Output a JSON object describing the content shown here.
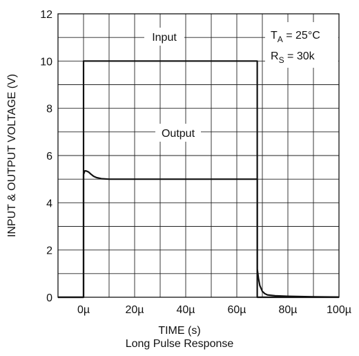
{
  "chart_data": {
    "type": "line",
    "caption": "Long Pulse Response",
    "xlabel": "TIME (s)",
    "ylabel": "INPUT & OUTPUT VOLTAGE (V)",
    "xlim": [
      -10,
      100
    ],
    "ylim": [
      0,
      12
    ],
    "x_ticks": [
      0,
      20,
      40,
      60,
      80,
      100
    ],
    "x_tick_labels": [
      "0µ",
      "20µ",
      "40µ",
      "60µ",
      "80µ",
      "100µ"
    ],
    "y_ticks": [
      0,
      2,
      4,
      6,
      8,
      10,
      12
    ],
    "y_tick_labels": [
      "0",
      "2",
      "4",
      "6",
      "8",
      "10",
      "12"
    ],
    "grid": true,
    "conditions": {
      "ta_label": "T",
      "ta_sub": "A",
      "ta_value": " = 25°C",
      "rs_label": "R",
      "rs_sub": "S",
      "rs_value": " = 30k"
    },
    "series": [
      {
        "name": "Input",
        "x": [
          -10,
          0,
          0,
          68,
          68,
          100
        ],
        "y": [
          0,
          0,
          10,
          10,
          0,
          0
        ]
      },
      {
        "name": "Output",
        "x": [
          -10,
          0,
          0,
          0.5,
          1,
          2,
          3,
          4,
          5,
          7,
          10,
          20,
          30,
          40,
          50,
          60,
          68,
          68,
          68.5,
          69,
          70,
          71,
          72,
          75,
          80,
          90,
          100
        ],
        "y": [
          0,
          0,
          5.2,
          5.35,
          5.35,
          5.3,
          5.2,
          5.12,
          5.07,
          5.02,
          5.0,
          5.0,
          5.0,
          5.0,
          5.0,
          5.0,
          5.0,
          1.2,
          0.8,
          0.5,
          0.25,
          0.15,
          0.1,
          0.06,
          0.04,
          0.02,
          0.01
        ]
      }
    ]
  }
}
